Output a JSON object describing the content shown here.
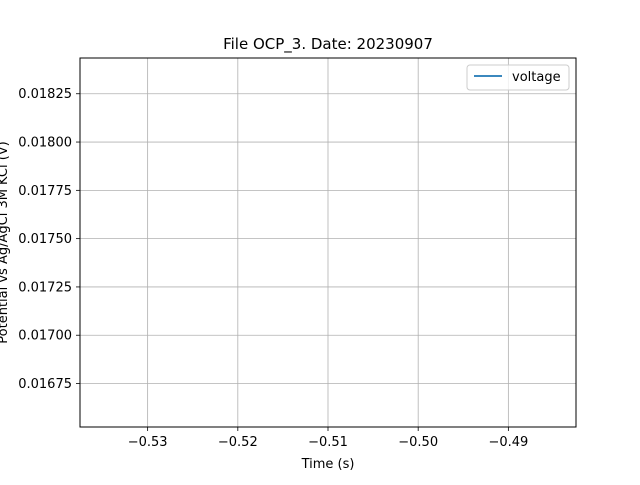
{
  "chart_data": {
    "type": "line",
    "title": "File OCP_3. Date: 20230907",
    "xlabel": "Time (s)",
    "ylabel": "Potential vs Ag/AgCl 3M KCl (V)",
    "xlim": [
      -0.5375,
      -0.4825
    ],
    "ylim": [
      0.016525,
      0.018435
    ],
    "x_ticks": [
      -0.53,
      -0.52,
      -0.51,
      -0.5,
      -0.49
    ],
    "x_tick_labels": [
      "−0.53",
      "−0.52",
      "−0.51",
      "−0.50",
      "−0.49"
    ],
    "y_ticks": [
      0.01675,
      0.017,
      0.01725,
      0.0175,
      0.01775,
      0.018,
      0.01825
    ],
    "y_tick_labels": [
      "0.01675",
      "0.01700",
      "0.01725",
      "0.01750",
      "0.01775",
      "0.01800",
      "0.01825"
    ],
    "grid": true,
    "legend_position": "top-right",
    "series": [
      {
        "name": "voltage",
        "color": "#1f77b4",
        "x": [],
        "y": []
      }
    ]
  }
}
